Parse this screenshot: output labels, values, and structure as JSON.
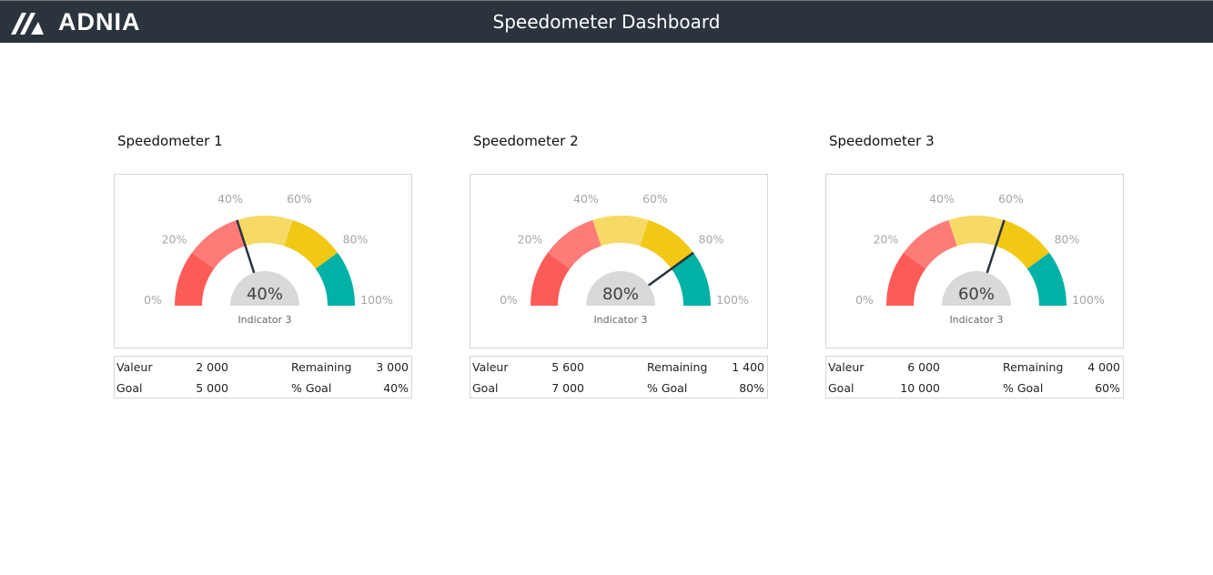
{
  "header": {
    "brand": "ADNIA",
    "title": "Speedometer Dashboard"
  },
  "colors": {
    "header": "#2b333d",
    "segments": [
      "#fd5b58",
      "#fd7c78",
      "#f7da66",
      "#f1c814",
      "#01b1a5"
    ],
    "hub": "#d9d9d9",
    "needle": "#2b333d"
  },
  "scale_labels": [
    "0%",
    "20%",
    "40%",
    "60%",
    "80%",
    "100%"
  ],
  "gauges": [
    {
      "title": "Speedometer 1",
      "value_pct": 0.4,
      "value_label": "40%",
      "indicator": "Indicator 3",
      "valeur_label": "Valeur",
      "valeur": "2 000",
      "remaining_label": "Remaining",
      "remaining": "3 000",
      "goal_label": "Goal",
      "goal": "5 000",
      "pct_goal_label": "% Goal",
      "pct_goal": "40%"
    },
    {
      "title": "Speedometer 2",
      "value_pct": 0.8,
      "value_label": "80%",
      "indicator": "Indicator 3",
      "valeur_label": "Valeur",
      "valeur": "5 600",
      "remaining_label": "Remaining",
      "remaining": "1 400",
      "goal_label": "Goal",
      "goal": "7 000",
      "pct_goal_label": "% Goal",
      "pct_goal": "80%"
    },
    {
      "title": "Speedometer 3",
      "value_pct": 0.6,
      "value_label": "60%",
      "indicator": "Indicator 3",
      "valeur_label": "Valeur",
      "valeur": "6 000",
      "remaining_label": "Remaining",
      "remaining": "4 000",
      "goal_label": "Goal",
      "goal": "10 000",
      "pct_goal_label": "% Goal",
      "pct_goal": "60%"
    }
  ]
}
